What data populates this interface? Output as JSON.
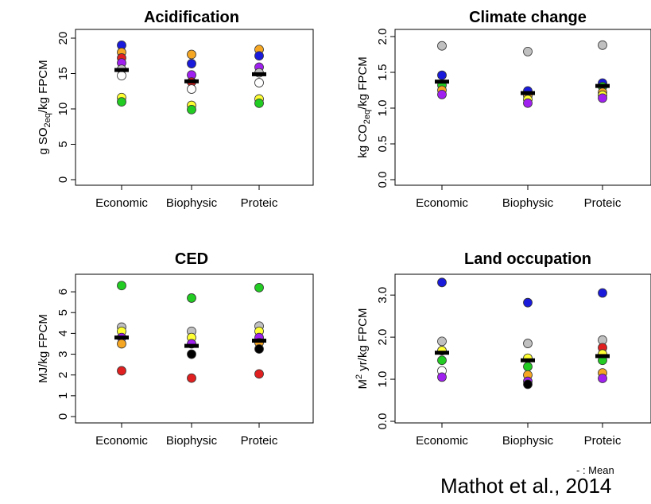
{
  "legend_note": "- : Mean",
  "citation": "Mathot et al., 2014",
  "chart_data": [
    {
      "type": "scatter",
      "title": "Acidification",
      "ylabel_parts": [
        "g SO",
        "2eq",
        "/kg FPCM"
      ],
      "categories": [
        "Economic",
        "Biophysic",
        "Proteic"
      ],
      "ylim": [
        0,
        20
      ],
      "yticks": [
        "0",
        "5",
        "10",
        "15",
        "20"
      ],
      "ytick_values": [
        0,
        5,
        10,
        15,
        20
      ],
      "points": [
        {
          "x": "Economic",
          "y": 19.0,
          "color": "#1a1adb"
        },
        {
          "x": "Economic",
          "y": 18.0,
          "color": "#f5a623"
        },
        {
          "x": "Economic",
          "y": 17.2,
          "color": "#e02020"
        },
        {
          "x": "Economic",
          "y": 16.5,
          "color": "#a020f0"
        },
        {
          "x": "Economic",
          "y": 15.6,
          "color": "#c0c0c0"
        },
        {
          "x": "Economic",
          "y": 14.7,
          "color": "#ffffff"
        },
        {
          "x": "Economic",
          "y": 11.6,
          "color": "#ffff33"
        },
        {
          "x": "Economic",
          "y": 11.0,
          "color": "#22cc22"
        },
        {
          "x": "Biophysic",
          "y": 17.7,
          "color": "#f5a623"
        },
        {
          "x": "Biophysic",
          "y": 16.4,
          "color": "#1a1adb"
        },
        {
          "x": "Biophysic",
          "y": 14.8,
          "color": "#a020f0"
        },
        {
          "x": "Biophysic",
          "y": 13.8,
          "color": "#e02020"
        },
        {
          "x": "Biophysic",
          "y": 12.8,
          "color": "#ffffff"
        },
        {
          "x": "Biophysic",
          "y": 10.5,
          "color": "#ffff33"
        },
        {
          "x": "Biophysic",
          "y": 9.9,
          "color": "#22cc22"
        },
        {
          "x": "Proteic",
          "y": 18.4,
          "color": "#f5a623"
        },
        {
          "x": "Proteic",
          "y": 17.5,
          "color": "#1a1adb"
        },
        {
          "x": "Proteic",
          "y": 15.9,
          "color": "#a020f0"
        },
        {
          "x": "Proteic",
          "y": 15.1,
          "color": "#c0c0c0"
        },
        {
          "x": "Proteic",
          "y": 13.7,
          "color": "#ffffff"
        },
        {
          "x": "Proteic",
          "y": 11.4,
          "color": "#ffff33"
        },
        {
          "x": "Proteic",
          "y": 10.8,
          "color": "#22cc22"
        }
      ],
      "means": {
        "Economic": 15.5,
        "Biophysic": 13.9,
        "Proteic": 14.9
      }
    },
    {
      "type": "scatter",
      "title": "Climate change",
      "ylabel_parts": [
        "kg CO",
        "2eq",
        "/kg FPCM"
      ],
      "categories": [
        "Economic",
        "Biophysic",
        "Proteic"
      ],
      "ylim": [
        0,
        2.0
      ],
      "yticks": [
        "0.0",
        "0.5",
        "1.0",
        "1.5",
        "2.0"
      ],
      "ytick_values": [
        0,
        0.5,
        1.0,
        1.5,
        2.0
      ],
      "points": [
        {
          "x": "Economic",
          "y": 1.87,
          "color": "#c0c0c0"
        },
        {
          "x": "Economic",
          "y": 1.46,
          "color": "#1a1adb"
        },
        {
          "x": "Economic",
          "y": 1.32,
          "color": "#22cc22"
        },
        {
          "x": "Economic",
          "y": 1.25,
          "color": "#f5a623"
        },
        {
          "x": "Economic",
          "y": 1.19,
          "color": "#a020f0"
        },
        {
          "x": "Biophysic",
          "y": 1.79,
          "color": "#c0c0c0"
        },
        {
          "x": "Biophysic",
          "y": 1.24,
          "color": "#1a1adb"
        },
        {
          "x": "Biophysic",
          "y": 1.17,
          "color": "#f5a623"
        },
        {
          "x": "Biophysic",
          "y": 1.12,
          "color": "#ffff33"
        },
        {
          "x": "Biophysic",
          "y": 1.07,
          "color": "#a020f0"
        },
        {
          "x": "Proteic",
          "y": 1.88,
          "color": "#c0c0c0"
        },
        {
          "x": "Proteic",
          "y": 1.35,
          "color": "#1a1adb"
        },
        {
          "x": "Proteic",
          "y": 1.3,
          "color": "#22cc22"
        },
        {
          "x": "Proteic",
          "y": 1.22,
          "color": "#f5a623"
        },
        {
          "x": "Proteic",
          "y": 1.18,
          "color": "#ffff33"
        },
        {
          "x": "Proteic",
          "y": 1.14,
          "color": "#a020f0"
        }
      ],
      "means": {
        "Economic": 1.37,
        "Biophysic": 1.21,
        "Proteic": 1.31
      }
    },
    {
      "type": "scatter",
      "title": "CED",
      "ylabel_parts": [
        "MJ/kg FPCM"
      ],
      "categories": [
        "Economic",
        "Biophysic",
        "Proteic"
      ],
      "ylim": [
        0,
        6.5
      ],
      "yticks": [
        "0",
        "1",
        "2",
        "3",
        "4",
        "5",
        "6"
      ],
      "ytick_values": [
        0,
        1,
        2,
        3,
        4,
        5,
        6
      ],
      "points": [
        {
          "x": "Economic",
          "y": 6.3,
          "color": "#22cc22"
        },
        {
          "x": "Economic",
          "y": 4.3,
          "color": "#c0c0c0"
        },
        {
          "x": "Economic",
          "y": 4.1,
          "color": "#ffff33"
        },
        {
          "x": "Economic",
          "y": 3.8,
          "color": "#a020f0"
        },
        {
          "x": "Economic",
          "y": 3.5,
          "color": "#f5a623"
        },
        {
          "x": "Economic",
          "y": 2.2,
          "color": "#e02020"
        },
        {
          "x": "Biophysic",
          "y": 5.7,
          "color": "#22cc22"
        },
        {
          "x": "Biophysic",
          "y": 4.1,
          "color": "#c0c0c0"
        },
        {
          "x": "Biophysic",
          "y": 3.8,
          "color": "#ffff33"
        },
        {
          "x": "Biophysic",
          "y": 3.5,
          "color": "#a020f0"
        },
        {
          "x": "Biophysic",
          "y": 3.0,
          "color": "#000000"
        },
        {
          "x": "Biophysic",
          "y": 1.85,
          "color": "#e02020"
        },
        {
          "x": "Proteic",
          "y": 6.2,
          "color": "#22cc22"
        },
        {
          "x": "Proteic",
          "y": 4.35,
          "color": "#c0c0c0"
        },
        {
          "x": "Proteic",
          "y": 4.1,
          "color": "#ffff33"
        },
        {
          "x": "Proteic",
          "y": 3.8,
          "color": "#a020f0"
        },
        {
          "x": "Proteic",
          "y": 3.55,
          "color": "#f5a623"
        },
        {
          "x": "Proteic",
          "y": 3.25,
          "color": "#000000"
        },
        {
          "x": "Proteic",
          "y": 2.05,
          "color": "#e02020"
        }
      ],
      "means": {
        "Economic": 3.8,
        "Biophysic": 3.4,
        "Proteic": 3.65
      }
    },
    {
      "type": "scatter",
      "title": "Land occupation",
      "ylabel_parts": [
        "M",
        "2",
        " yr/kg FPCM"
      ],
      "categories": [
        "Economic",
        "Biophysic",
        "Proteic"
      ],
      "ylim": [
        0,
        3.4
      ],
      "yticks": [
        "0.0",
        "1.0",
        "2.0",
        "3.0"
      ],
      "ytick_values": [
        0,
        1.0,
        2.0,
        3.0
      ],
      "points": [
        {
          "x": "Economic",
          "y": 3.3,
          "color": "#1a1adb"
        },
        {
          "x": "Economic",
          "y": 1.9,
          "color": "#c0c0c0"
        },
        {
          "x": "Economic",
          "y": 1.68,
          "color": "#ffff33"
        },
        {
          "x": "Economic",
          "y": 1.45,
          "color": "#22cc22"
        },
        {
          "x": "Economic",
          "y": 1.2,
          "color": "#ffffff"
        },
        {
          "x": "Economic",
          "y": 1.05,
          "color": "#a020f0"
        },
        {
          "x": "Biophysic",
          "y": 2.82,
          "color": "#1a1adb"
        },
        {
          "x": "Biophysic",
          "y": 1.85,
          "color": "#c0c0c0"
        },
        {
          "x": "Biophysic",
          "y": 1.5,
          "color": "#ffff33"
        },
        {
          "x": "Biophysic",
          "y": 1.3,
          "color": "#22cc22"
        },
        {
          "x": "Biophysic",
          "y": 1.1,
          "color": "#f5a623"
        },
        {
          "x": "Biophysic",
          "y": 0.95,
          "color": "#a020f0"
        },
        {
          "x": "Biophysic",
          "y": 0.88,
          "color": "#000000"
        },
        {
          "x": "Proteic",
          "y": 3.05,
          "color": "#1a1adb"
        },
        {
          "x": "Proteic",
          "y": 1.93,
          "color": "#c0c0c0"
        },
        {
          "x": "Proteic",
          "y": 1.75,
          "color": "#e02020"
        },
        {
          "x": "Proteic",
          "y": 1.6,
          "color": "#ffff33"
        },
        {
          "x": "Proteic",
          "y": 1.45,
          "color": "#22cc22"
        },
        {
          "x": "Proteic",
          "y": 1.15,
          "color": "#f5a623"
        },
        {
          "x": "Proteic",
          "y": 1.02,
          "color": "#a020f0"
        }
      ],
      "means": {
        "Economic": 1.63,
        "Biophysic": 1.45,
        "Proteic": 1.55
      }
    }
  ]
}
